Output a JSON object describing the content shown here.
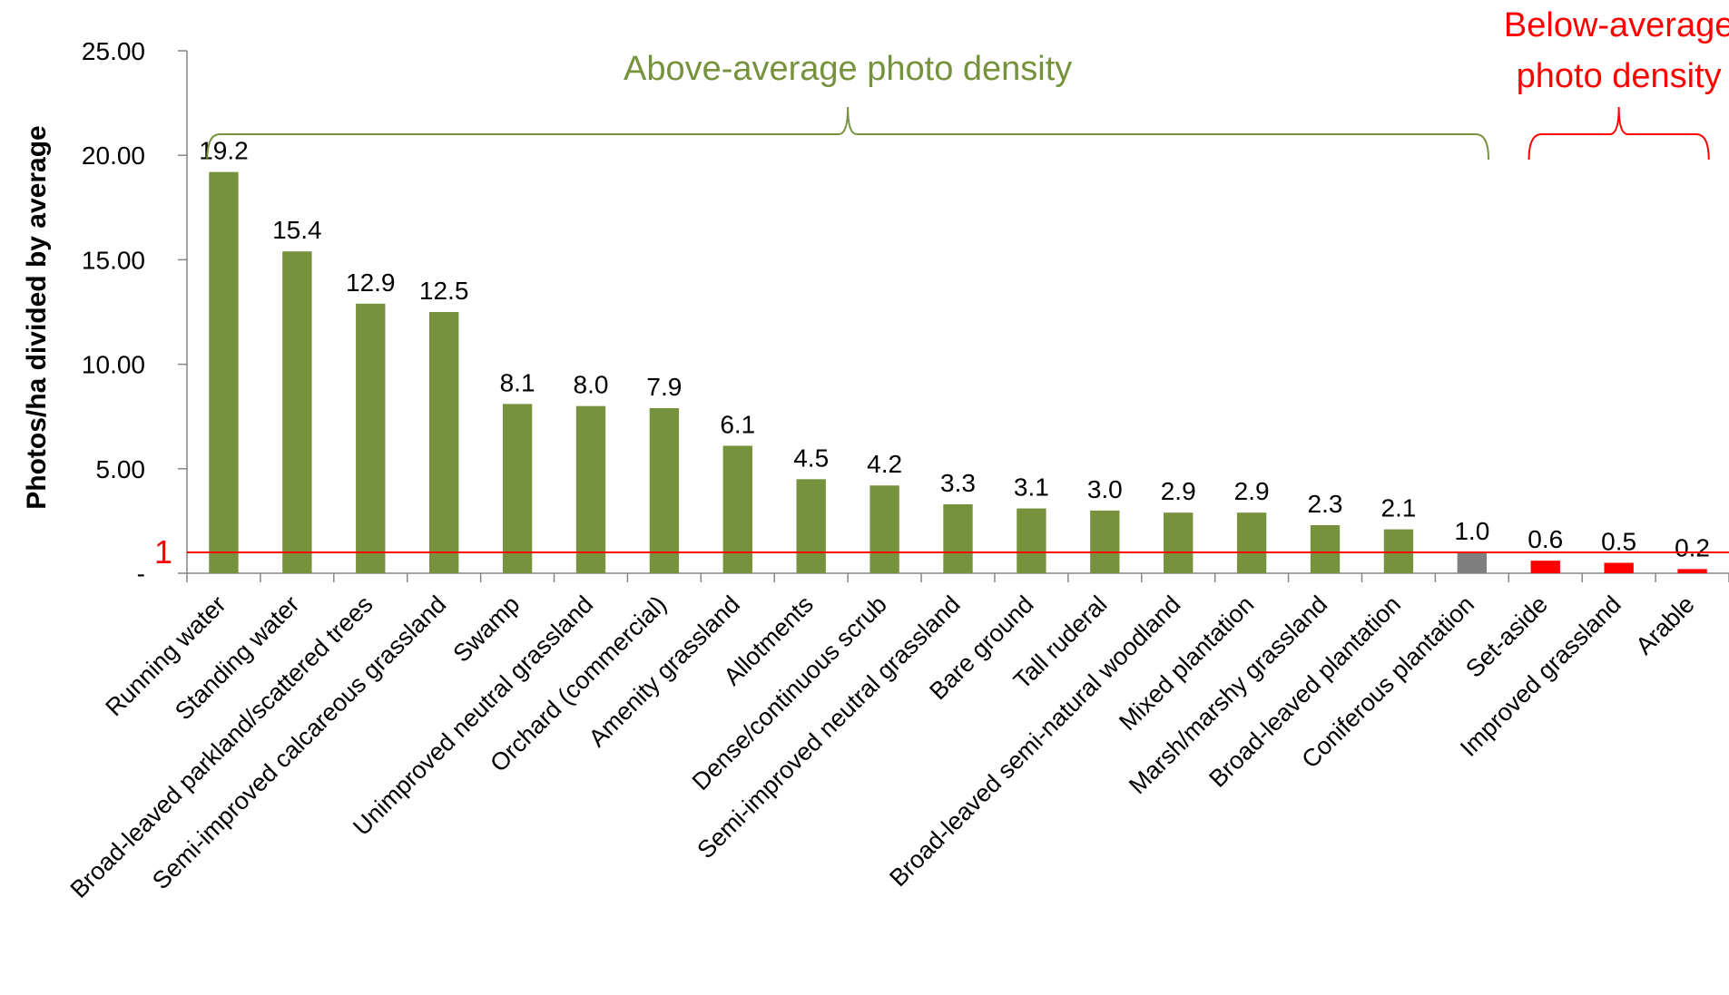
{
  "chart_data": {
    "type": "bar",
    "ylabel": "Photos/ha divided by average",
    "ylim": [
      0,
      25
    ],
    "yticks": [
      "-",
      "5.00",
      "10.00",
      "15.00",
      "20.00",
      "25.00"
    ],
    "categories": [
      "Running water",
      "Standing water",
      "Broad-leaved parkland/scattered trees",
      "Semi-improved calcareous grassland",
      "Swamp",
      "Unimproved neutral grassland",
      "Orchard (commercial)",
      "Amenity grassland",
      "Allotments",
      "Dense/continuous scrub",
      "Semi-improved neutral grassland",
      "Bare ground",
      "Tall ruderal",
      "Broad-leaved semi-natural woodland",
      "Mixed plantation",
      "Marsh/marshy grassland",
      "Broad-leaved plantation",
      "Coniferous plantation",
      "Set-aside",
      "Improved grassland",
      "Arable"
    ],
    "values": [
      19.2,
      15.4,
      12.9,
      12.5,
      8.1,
      8.0,
      7.9,
      6.1,
      4.5,
      4.2,
      3.3,
      3.1,
      3.0,
      2.9,
      2.9,
      2.3,
      2.1,
      1.0,
      0.6,
      0.5,
      0.2
    ],
    "value_labels": [
      "19.2",
      "15.4",
      "12.9",
      "12.5",
      "8.1",
      "8.0",
      "7.9",
      "6.1",
      "4.5",
      "4.2",
      "3.3",
      "3.1",
      "3.0",
      "2.9",
      "2.9",
      "2.3",
      "2.1",
      "1.0",
      "0.6",
      "0.5",
      "0.2"
    ],
    "bar_colors": [
      "#76923c",
      "#76923c",
      "#76923c",
      "#76923c",
      "#76923c",
      "#76923c",
      "#76923c",
      "#76923c",
      "#76923c",
      "#76923c",
      "#76923c",
      "#76923c",
      "#76923c",
      "#76923c",
      "#76923c",
      "#76923c",
      "#76923c",
      "#7f7f7f",
      "#ff0000",
      "#ff0000",
      "#ff0000"
    ],
    "reference_line": {
      "value": 1,
      "label": "1",
      "color": "#ff0000"
    },
    "groups": [
      {
        "name": "Above-average photo density",
        "from": 0,
        "to": 17,
        "color": "#76923c"
      },
      {
        "name": "Below-average photo density",
        "from": 18,
        "to": 20,
        "color": "#ff0000"
      }
    ],
    "grid": false,
    "legend": "none"
  }
}
